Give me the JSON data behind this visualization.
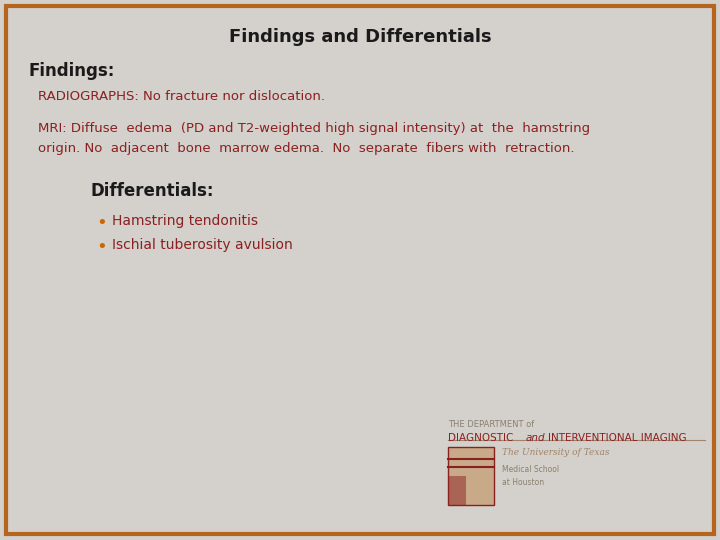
{
  "title": "Findings and Differentials",
  "title_fontsize": 13,
  "title_color": "#1a1a1a",
  "bg_color": "#d4d0cb",
  "border_color": "#b5651d",
  "findings_header": "Findings:",
  "findings_header_color": "#1a1a1a",
  "findings_header_fontsize": 12,
  "text_color": "#8B2020",
  "text_fontsize": 9.5,
  "radiograph_text": "RADIOGRAPHS: No fracture nor dislocation.",
  "mri_text_line1": "MRI: Diffuse  edema  (PD and T2-weighted high signal intensity) at  the  hamstring",
  "mri_text_line2": "origin. No  adjacent  bone  marrow edema.  No  separate  fibers with  retraction.",
  "differentials_header": "Differentials:",
  "differentials_header_fontsize": 12,
  "differentials_header_color": "#1a1a1a",
  "bullet_color": "#cc6600",
  "bullet_items": [
    "Hamstring tendonitis",
    "Ischial tuberosity avulsion"
  ],
  "bullet_fontsize": 10,
  "bullet_text_color": "#8B2020",
  "footer_line1": "THE DEPARTMENT of",
  "footer_line2_part1": "DIAGNOSTIC",
  "footer_line2_italic": "and",
  "footer_line2_part2": "INTERVENTIONAL IMAGING",
  "footer_line3": "The University of Texas",
  "footer_line4": "Medical School",
  "footer_line5": "at Houston",
  "footer_color_dark": "#8B2020",
  "footer_color_light": "#a0856a",
  "footer_color_small": "#8a8070"
}
